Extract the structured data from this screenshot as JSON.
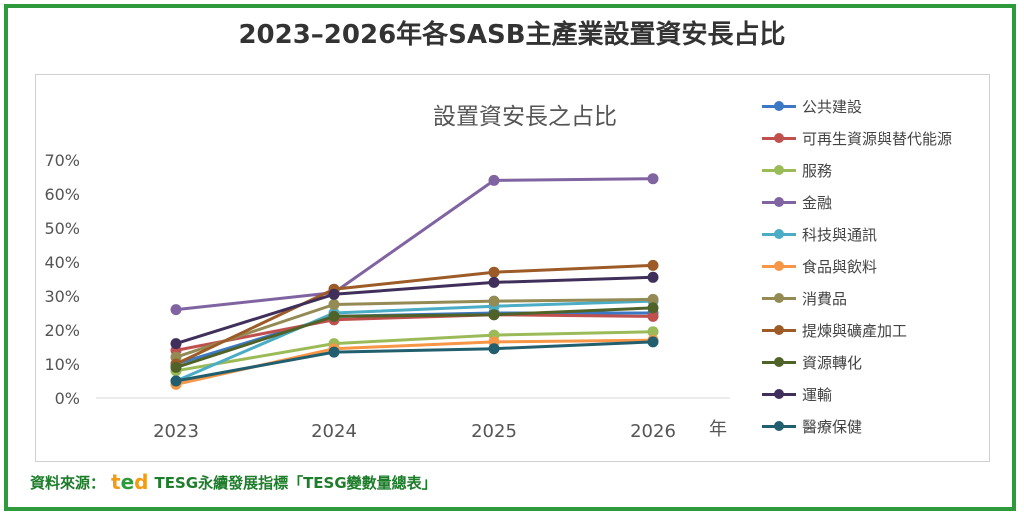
{
  "main_title": "2023–2026年各SASB主產業設置資安長占比",
  "footer": {
    "source_label": "資料來源：",
    "logo_letters": [
      "t",
      "e",
      "d"
    ],
    "source_text": "TESG永續發展指標「TESG變數量總表」"
  },
  "chart_data": {
    "type": "line",
    "title": "設置資安長之占比",
    "xlabel": "年",
    "ylabel": "",
    "x": [
      "2023",
      "2024",
      "2025",
      "2026"
    ],
    "ylim": [
      0,
      70
    ],
    "yticks": [
      "0%",
      "10%",
      "20%",
      "30%",
      "40%",
      "50%",
      "60%",
      "70%"
    ],
    "grid": false,
    "legend_position": "right",
    "series": [
      {
        "name": "公共建設",
        "color": "#3c78c3",
        "values": [
          10,
          24,
          25,
          25
        ]
      },
      {
        "name": "可再生資源與替代能源",
        "color": "#c0504d",
        "values": [
          14,
          23,
          24.5,
          24
        ]
      },
      {
        "name": "服務",
        "color": "#9bbb59",
        "values": [
          8,
          16,
          18.5,
          19.5
        ]
      },
      {
        "name": "金融",
        "color": "#8064a2",
        "values": [
          26,
          31,
          64,
          64.5
        ]
      },
      {
        "name": "科技與通訊",
        "color": "#4bacc6",
        "values": [
          5,
          25,
          27,
          28.5
        ]
      },
      {
        "name": "食品與飲料",
        "color": "#f79646",
        "values": [
          4,
          14.5,
          16.5,
          17
        ]
      },
      {
        "name": "消費品",
        "color": "#948a54",
        "values": [
          12,
          27.5,
          28.5,
          29
        ]
      },
      {
        "name": "提煉與礦產加工",
        "color": "#9c5b27",
        "values": [
          10,
          32,
          37,
          39
        ]
      },
      {
        "name": "資源轉化",
        "color": "#4f6228",
        "values": [
          9,
          24,
          24.5,
          26.5
        ]
      },
      {
        "name": "運輸",
        "color": "#3f2f5a",
        "values": [
          16,
          30.5,
          34,
          35.5
        ]
      },
      {
        "name": "醫療保健",
        "color": "#215f6e",
        "values": [
          5,
          13.5,
          14.5,
          16.5
        ]
      }
    ]
  }
}
